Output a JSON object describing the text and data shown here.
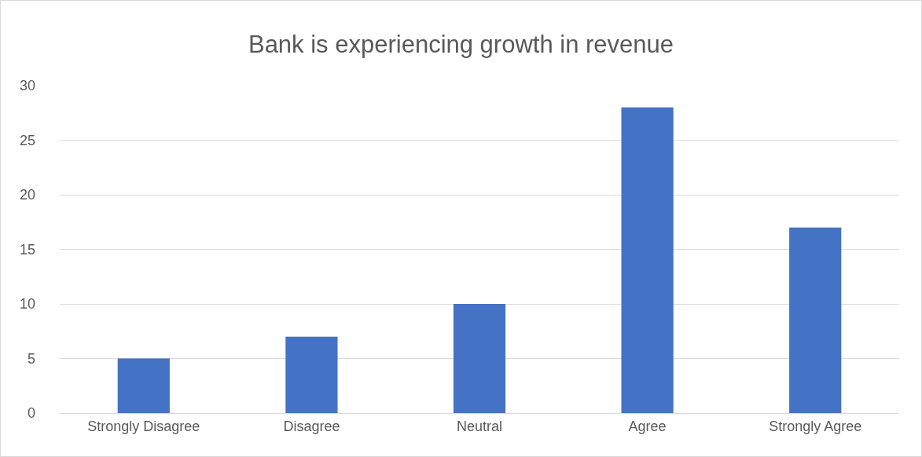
{
  "chart_data": {
    "type": "bar",
    "title": "Bank is experiencing growth in revenue",
    "categories": [
      "Strongly Disagree",
      "Disagree",
      "Neutral",
      "Agree",
      "Strongly Agree"
    ],
    "values": [
      5,
      7,
      10,
      28,
      17
    ],
    "color": "#4472c4",
    "ylim": [
      0,
      30
    ],
    "yticks": [
      0,
      5,
      10,
      15,
      20,
      25,
      30
    ],
    "grid": "y",
    "legend": false
  }
}
